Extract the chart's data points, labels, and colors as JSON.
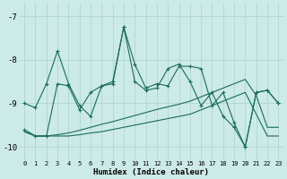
{
  "xlabel": "Humidex (Indice chaleur)",
  "background_color": "#cceae7",
  "line_color": "#1a6b5e",
  "grid_color": "#aad4d0",
  "xlim": [
    -0.5,
    23.5
  ],
  "ylim": [
    -10.3,
    -6.7
  ],
  "yticks": [
    -10,
    -9,
    -8,
    -7
  ],
  "xticks": [
    0,
    1,
    2,
    3,
    4,
    5,
    6,
    7,
    8,
    9,
    10,
    11,
    12,
    13,
    14,
    15,
    16,
    17,
    18,
    19,
    20,
    21,
    22,
    23
  ],
  "line1_x": [
    0,
    1,
    2,
    3,
    4,
    5,
    6,
    7,
    8,
    9,
    10,
    11,
    12,
    13,
    14,
    15,
    16,
    17,
    18,
    19,
    20,
    21,
    22,
    23
  ],
  "line1_y": [
    -9.0,
    -9.1,
    -8.55,
    -7.8,
    -8.55,
    -9.05,
    -9.3,
    -8.6,
    -8.55,
    -7.25,
    -8.1,
    -8.65,
    -8.55,
    -8.6,
    -8.15,
    -8.15,
    -8.2,
    -9.05,
    -8.75,
    -9.45,
    -10.0,
    -8.75,
    -8.7,
    -9.0
  ],
  "line2_x": [
    0,
    1,
    2,
    3,
    4,
    5,
    6,
    7,
    8,
    9,
    10,
    11,
    12,
    13,
    14,
    15,
    16,
    17,
    18,
    19,
    20,
    21,
    22,
    23
  ],
  "line2_y": [
    -9.6,
    -9.75,
    -9.75,
    -8.55,
    -8.6,
    -9.15,
    -8.75,
    -8.6,
    -8.5,
    -7.25,
    -8.5,
    -8.7,
    -8.65,
    -8.2,
    -8.1,
    -8.5,
    -9.05,
    -8.75,
    -9.3,
    -9.55,
    -10.0,
    -8.75,
    -8.7,
    -9.0
  ],
  "line3_x": [
    0,
    1,
    2,
    3,
    4,
    5,
    6,
    7,
    8,
    9,
    10,
    11,
    12,
    13,
    14,
    15,
    16,
    17,
    18,
    19,
    20,
    21,
    22,
    23
  ],
  "line3_y": [
    -9.65,
    -9.75,
    -9.75,
    -9.72,
    -9.68,
    -9.62,
    -9.55,
    -9.48,
    -9.42,
    -9.35,
    -9.28,
    -9.21,
    -9.14,
    -9.08,
    -9.02,
    -8.95,
    -8.85,
    -8.75,
    -8.65,
    -8.55,
    -8.45,
    -8.82,
    -9.55,
    -9.55
  ],
  "line4_x": [
    0,
    1,
    2,
    3,
    4,
    5,
    6,
    7,
    8,
    9,
    10,
    11,
    12,
    13,
    14,
    15,
    16,
    17,
    18,
    19,
    20,
    21,
    22,
    23
  ],
  "line4_y": [
    -9.65,
    -9.75,
    -9.75,
    -9.75,
    -9.75,
    -9.72,
    -9.68,
    -9.65,
    -9.6,
    -9.55,
    -9.5,
    -9.45,
    -9.4,
    -9.35,
    -9.3,
    -9.25,
    -9.15,
    -9.05,
    -8.95,
    -8.85,
    -8.75,
    -9.25,
    -9.75,
    -9.75
  ]
}
